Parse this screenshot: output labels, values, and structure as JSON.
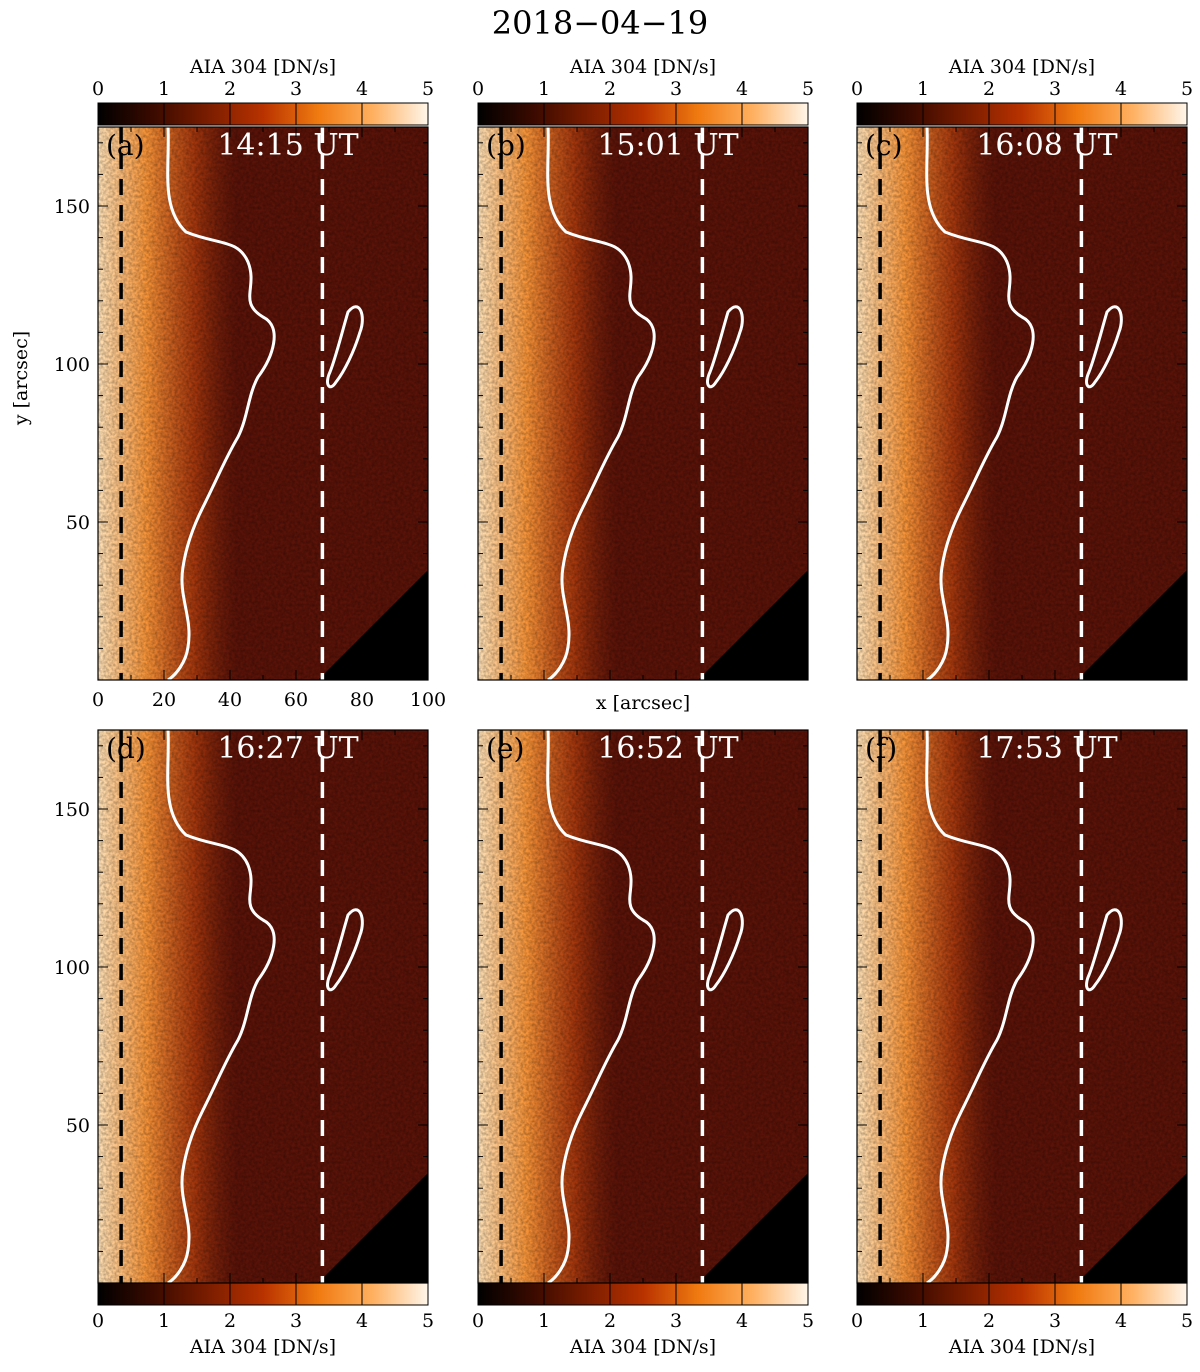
{
  "figure": {
    "title": "2018−04−19",
    "colorbar": {
      "label": "AIA 304 [DN/s]",
      "ticks": [
        "0",
        "1",
        "2",
        "3",
        "4",
        "5"
      ],
      "range": [
        0,
        5
      ],
      "colormap": [
        "#000000",
        "#3a0a00",
        "#7a1d00",
        "#b83200",
        "#f07a10",
        "#ffb060",
        "#fff6ea"
      ]
    },
    "x_axis": {
      "label": "x [arcsec]",
      "ticks": [
        "0",
        "20",
        "40",
        "60",
        "80",
        "100"
      ],
      "range": [
        0,
        100
      ]
    },
    "y_axis": {
      "label": "y [arcsec]",
      "ticks": [
        "50",
        "100",
        "150"
      ],
      "range": [
        0,
        175
      ]
    },
    "dashed_lines_x": [
      7,
      68
    ],
    "panels": [
      {
        "tag": "(a)",
        "time": "14:15 UT"
      },
      {
        "tag": "(b)",
        "time": "15:01 UT"
      },
      {
        "tag": "(c)",
        "time": "16:08 UT"
      },
      {
        "tag": "(d)",
        "time": "16:27 UT"
      },
      {
        "tag": "(e)",
        "time": "16:52 UT"
      },
      {
        "tag": "(f)",
        "time": "17:53 UT"
      }
    ],
    "colors": {
      "background": "#5a1308",
      "bright": "#ffd7a0",
      "contour": "#ffffff",
      "dash_left": "#000000",
      "dash_right": "#ffffff"
    }
  }
}
